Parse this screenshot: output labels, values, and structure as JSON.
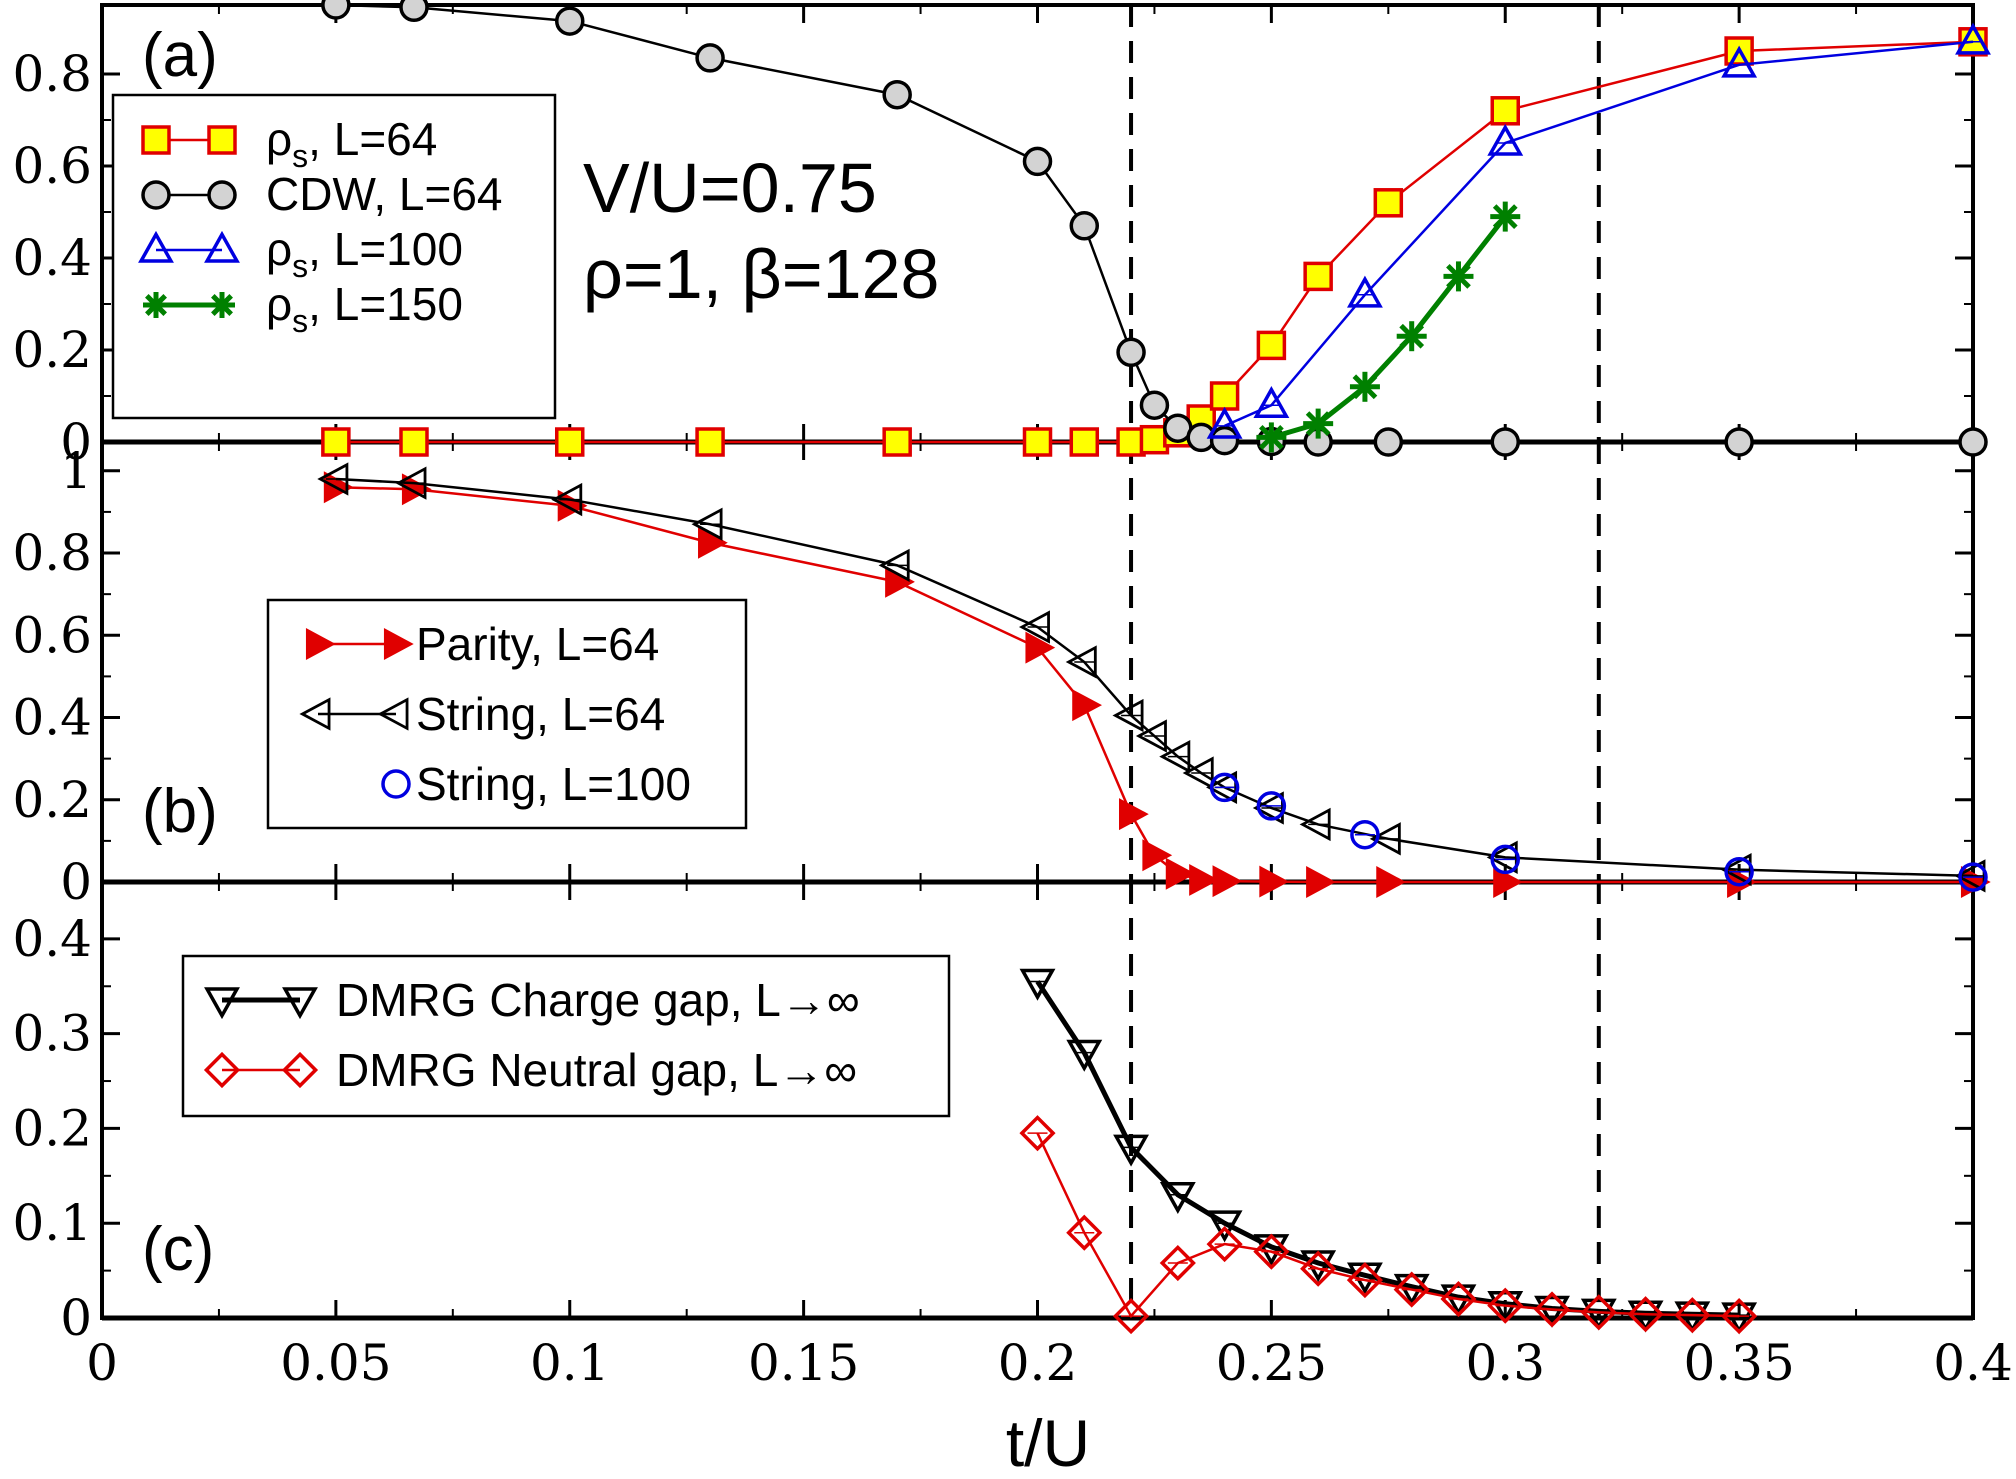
{
  "chart_data": [
    {
      "panel": "(a)",
      "type": "line",
      "xlim": [
        0,
        0.4
      ],
      "ylim": [
        0,
        0.95
      ],
      "yticks": [
        "0",
        "0.2",
        "0.4",
        "0.6",
        "0.8"
      ],
      "ytick_values": [
        0,
        0.2,
        0.4,
        0.6,
        0.8
      ],
      "annotation": [
        "V/U=0.75",
        "ρ=1, β=128"
      ],
      "legend_position": "upper-left",
      "series": [
        {
          "name": "ρs, L=64",
          "label_main": "ρ",
          "label_sub": "s",
          "label_rest": ", L=64",
          "color": "#e00000",
          "fill": "#ffff00",
          "marker": "square",
          "x": [
            0.05,
            0.0667,
            0.1,
            0.13,
            0.17,
            0.2,
            0.21,
            0.22,
            0.225,
            0.23,
            0.235,
            0.24,
            0.25,
            0.26,
            0.275,
            0.3,
            0.35,
            0.4
          ],
          "y": [
            0,
            0,
            0,
            0,
            0,
            0,
            0,
            0,
            0.005,
            0.02,
            0.05,
            0.1,
            0.21,
            0.36,
            0.52,
            0.72,
            0.85,
            0.87
          ]
        },
        {
          "name": "CDW, L=64",
          "label_main": "CDW, L=64",
          "label_sub": "",
          "label_rest": "",
          "color": "#000000",
          "fill": "#d3d3d3",
          "marker": "circle",
          "x": [
            0.05,
            0.0667,
            0.1,
            0.13,
            0.17,
            0.2,
            0.21,
            0.22,
            0.225,
            0.23,
            0.235,
            0.24,
            0.25,
            0.26,
            0.275,
            0.3,
            0.35,
            0.4
          ],
          "y": [
            0.95,
            0.945,
            0.915,
            0.835,
            0.755,
            0.61,
            0.47,
            0.195,
            0.08,
            0.03,
            0.01,
            0.003,
            0.001,
            0,
            0,
            0,
            0,
            0
          ]
        },
        {
          "name": "ρs, L=100",
          "label_main": "ρ",
          "label_sub": "s",
          "label_rest": ", L=100",
          "color": "#0000e0",
          "fill": "none",
          "marker": "triangle-up",
          "x": [
            0.24,
            0.25,
            0.27,
            0.3,
            0.35,
            0.4
          ],
          "y": [
            0.035,
            0.08,
            0.32,
            0.65,
            0.82,
            0.87
          ]
        },
        {
          "name": "ρs, L=150",
          "label_main": "ρ",
          "label_sub": "s",
          "label_rest": ", L=150",
          "color": "#008000",
          "fill": "none",
          "marker": "star",
          "x": [
            0.25,
            0.26,
            0.27,
            0.28,
            0.29,
            0.3
          ],
          "y": [
            0.01,
            0.04,
            0.12,
            0.23,
            0.36,
            0.49
          ]
        }
      ]
    },
    {
      "panel": "(b)",
      "type": "line",
      "xlim": [
        0,
        0.4
      ],
      "ylim": [
        0,
        1.07
      ],
      "yticks": [
        "0",
        "0.2",
        "0.4",
        "0.6",
        "0.8",
        "1"
      ],
      "ytick_values": [
        0,
        0.2,
        0.4,
        0.6,
        0.8,
        1
      ],
      "legend_position": "center-left",
      "series": [
        {
          "name": "Parity, L=64",
          "color": "#e00000",
          "fill": "#e00000",
          "marker": "triangle-right",
          "x": [
            0.05,
            0.0667,
            0.1,
            0.13,
            0.17,
            0.2,
            0.21,
            0.22,
            0.225,
            0.23,
            0.235,
            0.24,
            0.25,
            0.26,
            0.275,
            0.3,
            0.35,
            0.4
          ],
          "y": [
            0.96,
            0.955,
            0.915,
            0.825,
            0.73,
            0.57,
            0.43,
            0.165,
            0.065,
            0.02,
            0.005,
            0.002,
            0.001,
            0,
            0,
            0,
            0,
            0
          ]
        },
        {
          "name": "String, L=64",
          "color": "#000000",
          "fill": "none",
          "marker": "triangle-left",
          "x": [
            0.05,
            0.0667,
            0.1,
            0.13,
            0.17,
            0.2,
            0.21,
            0.22,
            0.225,
            0.23,
            0.235,
            0.24,
            0.25,
            0.26,
            0.275,
            0.3,
            0.35,
            0.4
          ],
          "y": [
            0.98,
            0.97,
            0.93,
            0.87,
            0.77,
            0.62,
            0.535,
            0.405,
            0.355,
            0.305,
            0.265,
            0.23,
            0.18,
            0.14,
            0.105,
            0.06,
            0.03,
            0.015
          ]
        },
        {
          "name": "String, L=100",
          "color": "#0000e0",
          "fill": "none",
          "marker": "circle",
          "no_line": true,
          "x": [
            0.24,
            0.25,
            0.27,
            0.3,
            0.35,
            0.4
          ],
          "y": [
            0.23,
            0.185,
            0.115,
            0.055,
            0.025,
            0.012
          ]
        }
      ]
    },
    {
      "panel": "(c)",
      "type": "line",
      "xlim": [
        0,
        0.4
      ],
      "ylim": [
        0,
        0.46
      ],
      "yticks": [
        "0",
        "0.1",
        "0.2",
        "0.3",
        "0.4"
      ],
      "ytick_values": [
        0,
        0.1,
        0.2,
        0.3,
        0.4
      ],
      "xticks": [
        "0",
        "0.05",
        "0.1",
        "0.15",
        "0.2",
        "0.25",
        "0.3",
        "0.35",
        "0.4"
      ],
      "xtick_values": [
        0,
        0.05,
        0.1,
        0.15,
        0.2,
        0.25,
        0.3,
        0.35,
        0.4
      ],
      "xlabel": "t/U",
      "legend_position": "top-center",
      "series": [
        {
          "name": "DMRG Charge gap, L→∞",
          "color": "#000000",
          "fill": "none",
          "marker": "triangle-down",
          "x": [
            0.2,
            0.21,
            0.22,
            0.23,
            0.24,
            0.25,
            0.26,
            0.27,
            0.28,
            0.29,
            0.3,
            0.31,
            0.32,
            0.33,
            0.34,
            0.35
          ],
          "y": [
            0.355,
            0.28,
            0.18,
            0.13,
            0.1,
            0.075,
            0.058,
            0.045,
            0.033,
            0.022,
            0.015,
            0.01,
            0.007,
            0.005,
            0.004,
            0.003
          ]
        },
        {
          "name": "DMRG Neutral gap, L→∞",
          "color": "#e00000",
          "fill": "none",
          "marker": "diamond",
          "x": [
            0.2,
            0.21,
            0.22,
            0.23,
            0.24,
            0.25,
            0.26,
            0.27,
            0.28,
            0.29,
            0.3,
            0.31,
            0.32,
            0.33,
            0.34,
            0.35
          ],
          "y": [
            0.195,
            0.09,
            0.002,
            0.058,
            0.078,
            0.07,
            0.052,
            0.04,
            0.03,
            0.02,
            0.013,
            0.009,
            0.006,
            0.004,
            0.003,
            0.002
          ]
        }
      ]
    }
  ],
  "vertical_dashed_lines": [
    0.22,
    0.32
  ],
  "colors": {
    "axis": "#000000",
    "red": "#e00000",
    "blue": "#0000e0",
    "green": "#008000",
    "gray_fill": "#d3d3d3",
    "yellow_fill": "#ffff00"
  }
}
